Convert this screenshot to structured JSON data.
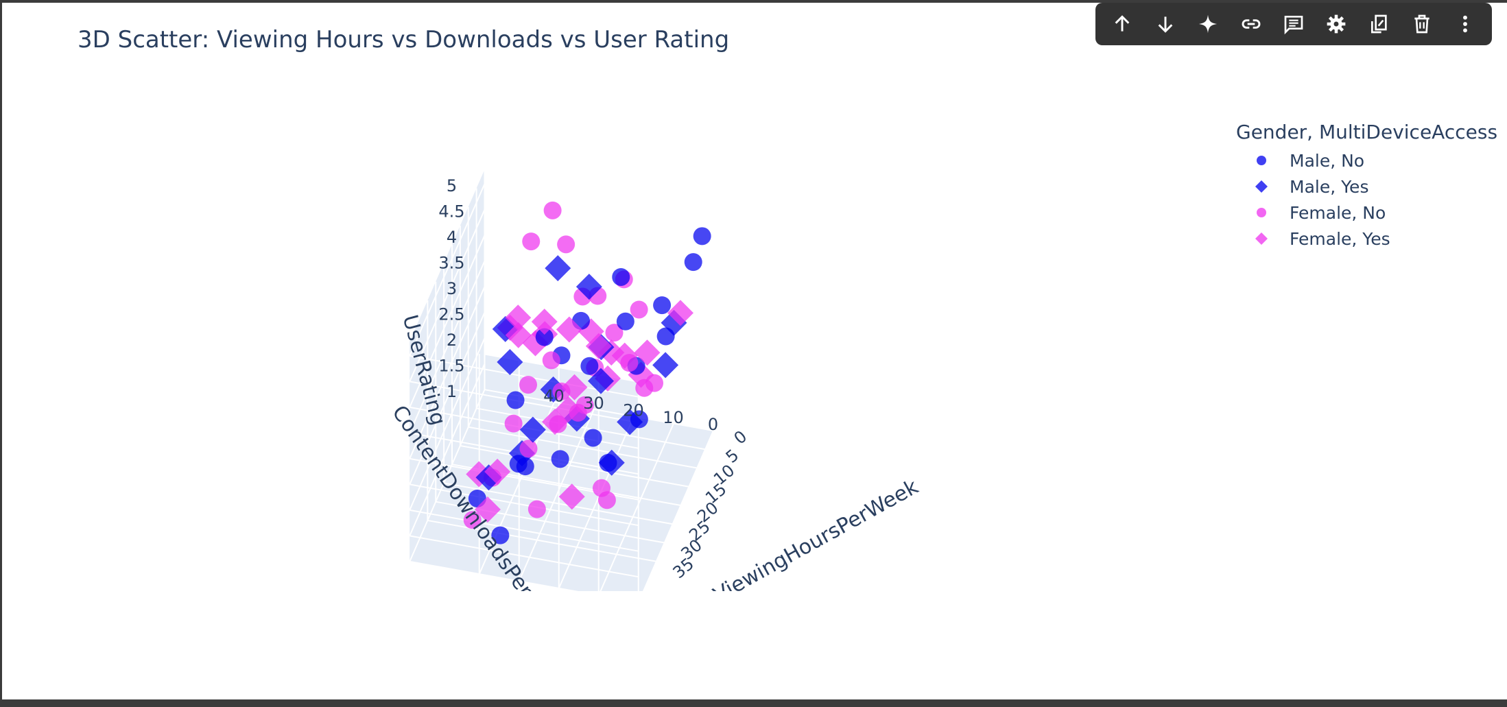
{
  "toolbar": {
    "icons": [
      "arrow-up-icon",
      "arrow-down-icon",
      "sparkle-icon",
      "link-icon",
      "comment-icon",
      "gear-icon",
      "external-icon",
      "trash-icon",
      "more-vert-icon"
    ]
  },
  "colors": {
    "male": "#0000ee",
    "female": "#ee33ee",
    "grid": "#ffffff",
    "pane": "#e5ecf6"
  },
  "chart_data": {
    "type": "scatter3d",
    "title": "3D Scatter: Viewing Hours vs Downloads vs User Rating",
    "xlabel": "ViewingHoursPerWeek",
    "ylabel": "ContentDownloadsPerMonth",
    "zlabel": "UserRating",
    "xlim": [
      0,
      40
    ],
    "ylim": [
      0,
      50
    ],
    "zlim": [
      1,
      5
    ],
    "xticks": [
      "0",
      "5",
      "10",
      "15",
      "20",
      "25",
      "30",
      "35"
    ],
    "yticks": [
      "0",
      "10",
      "20",
      "30",
      "40"
    ],
    "zticks": [
      "1",
      "1.5",
      "2",
      "2.5",
      "3",
      "3.5",
      "4",
      "4.5",
      "5"
    ],
    "legend_title": "Gender, MultiDeviceAccess",
    "legend_placement": "top-right",
    "series": [
      {
        "name": "Male, No",
        "symbol": "circle",
        "color": "#0000ee",
        "points": [
          [
            2,
            2,
            4.9
          ],
          [
            5,
            3,
            4.6
          ],
          [
            12,
            8,
            4.2
          ],
          [
            18,
            12,
            3.4
          ],
          [
            25,
            20,
            2.4
          ],
          [
            30,
            35,
            2.0
          ],
          [
            8,
            30,
            3.3
          ],
          [
            15,
            25,
            3.0
          ],
          [
            22,
            40,
            1.4
          ],
          [
            35,
            45,
            1.6
          ],
          [
            10,
            18,
            3.6
          ],
          [
            28,
            15,
            2.2
          ],
          [
            6,
            40,
            2.7
          ],
          [
            20,
            30,
            3.5
          ],
          [
            33,
            25,
            2.5
          ],
          [
            14,
            44,
            2.0
          ],
          [
            26,
            8,
            3.0
          ],
          [
            3,
            22,
            3.9
          ],
          [
            38,
            38,
            1.2
          ],
          [
            17,
            5,
            4.0
          ]
        ]
      },
      {
        "name": "Male, Yes",
        "symbol": "diamond",
        "color": "#0000ee",
        "points": [
          [
            30,
            40,
            4.6
          ],
          [
            10,
            35,
            4.4
          ],
          [
            20,
            20,
            3.8
          ],
          [
            5,
            10,
            2.5
          ],
          [
            25,
            30,
            3.2
          ],
          [
            15,
            45,
            2.8
          ],
          [
            35,
            20,
            3.5
          ],
          [
            8,
            25,
            2.2
          ],
          [
            28,
            45,
            1.5
          ],
          [
            12,
            5,
            3.9
          ],
          [
            22,
            12,
            2.6
          ],
          [
            32,
            35,
            2.4
          ],
          [
            3,
            30,
            3.6
          ],
          [
            18,
            38,
            1.8
          ],
          [
            38,
            10,
            3.0
          ]
        ]
      },
      {
        "name": "Female, No",
        "symbol": "circle",
        "color": "#ee33ee",
        "points": [
          [
            1,
            40,
            4.8
          ],
          [
            2,
            45,
            4.2
          ],
          [
            5,
            35,
            4.5
          ],
          [
            7,
            30,
            3.7
          ],
          [
            10,
            25,
            4.0
          ],
          [
            12,
            20,
            3.5
          ],
          [
            15,
            15,
            3.2
          ],
          [
            18,
            10,
            3.0
          ],
          [
            20,
            30,
            2.8
          ],
          [
            22,
            25,
            2.6
          ],
          [
            25,
            40,
            2.4
          ],
          [
            28,
            35,
            2.2
          ],
          [
            30,
            20,
            3.4
          ],
          [
            32,
            15,
            2.0
          ],
          [
            35,
            30,
            1.6
          ],
          [
            38,
            45,
            1.4
          ],
          [
            9,
            15,
            3.8
          ],
          [
            14,
            35,
            2.9
          ],
          [
            24,
            5,
            3.6
          ],
          [
            27,
            28,
            2.7
          ],
          [
            33,
            42,
            1.9
          ],
          [
            6,
            20,
            4.1
          ],
          [
            16,
            40,
            2.5
          ],
          [
            19,
            22,
            3.3
          ],
          [
            36,
            12,
            2.1
          ]
        ]
      },
      {
        "name": "Female, Yes",
        "symbol": "diamond",
        "color": "#ee33ee",
        "points": [
          [
            36,
            30,
            4.9
          ],
          [
            32,
            38,
            4.8
          ],
          [
            30,
            10,
            4.5
          ],
          [
            26,
            15,
            4.2
          ],
          [
            22,
            40,
            3.9
          ],
          [
            18,
            35,
            3.7
          ],
          [
            14,
            25,
            3.6
          ],
          [
            10,
            45,
            3.3
          ],
          [
            6,
            40,
            3.0
          ],
          [
            3,
            35,
            2.7
          ],
          [
            38,
            20,
            2.2
          ],
          [
            34,
            45,
            2.0
          ],
          [
            30,
            42,
            1.8
          ],
          [
            24,
            30,
            2.5
          ],
          [
            20,
            10,
            3.4
          ],
          [
            16,
            20,
            2.9
          ],
          [
            12,
            30,
            2.3
          ],
          [
            8,
            5,
            3.8
          ],
          [
            4,
            15,
            2.6
          ],
          [
            28,
            25,
            3.1
          ],
          [
            2,
            28,
            2.4
          ],
          [
            36,
            42,
            1.5
          ]
        ]
      }
    ]
  }
}
